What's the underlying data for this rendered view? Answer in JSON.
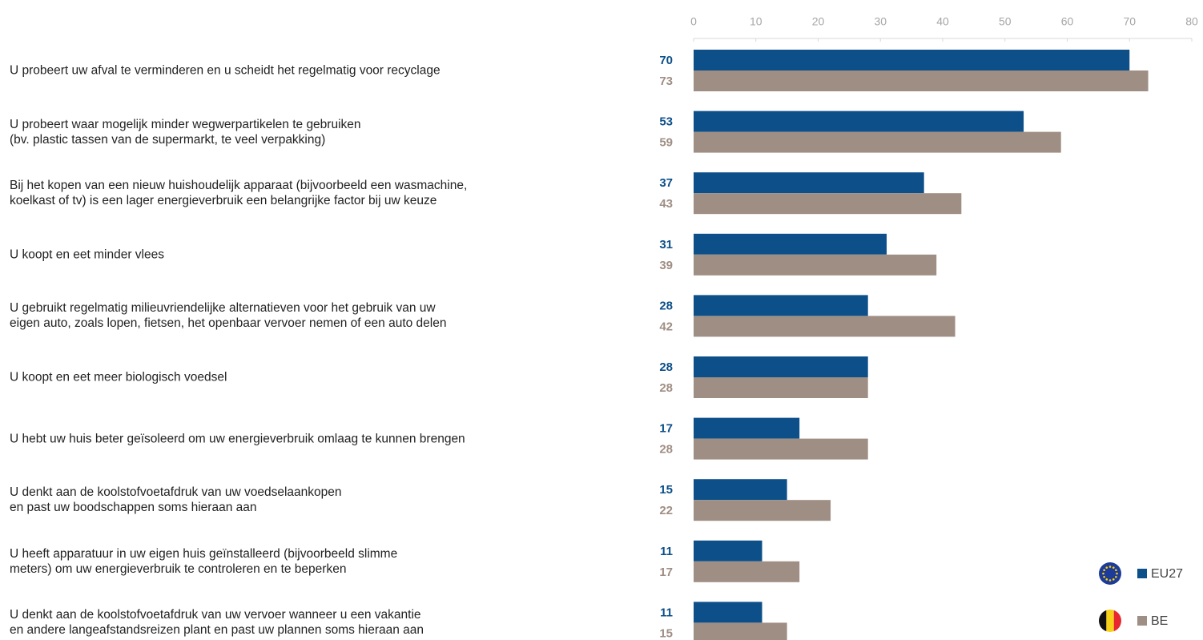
{
  "chart_data": {
    "type": "bar",
    "orientation": "horizontal",
    "categories": [
      "U probeert uw afval te verminderen en u scheidt het regelmatig voor recyclage",
      "U probeert waar mogelijk minder wegwerpartikelen te gebruiken\n(bv. plastic tassen van de supermarkt, te veel verpakking)",
      "Bij het kopen van een nieuw huishoudelijk apparaat (bijvoorbeeld een wasmachine,\nkoelkast of tv) is een lager energieverbruik een belangrijke factor bij uw keuze",
      "U koopt en eet minder vlees",
      "U gebruikt regelmatig milieuvriendelijke alternatieven voor het gebruik van uw\neigen auto, zoals lopen, fietsen, het openbaar vervoer nemen of een auto delen",
      "U koopt en eet meer biologisch voedsel",
      "U hebt uw huis beter geïsoleerd om uw energieverbruik omlaag te kunnen brengen",
      "U denkt aan de koolstofvoetafdruk van uw voedselaankopen\nen past uw boodschappen soms hieraan aan",
      "U heeft apparatuur in uw eigen huis geïnstalleerd (bijvoorbeeld slimme\nmeters) om uw energieverbruik te controleren en te beperken",
      "U denkt aan de koolstofvoetafdruk van uw vervoer wanneer u een vakantie\nen andere langeafstandsreizen plant en past uw plannen soms hieraan aan"
    ],
    "series": [
      {
        "name": "EU27",
        "color": "#0c4f89",
        "values": [
          70,
          53,
          37,
          31,
          28,
          28,
          17,
          15,
          11,
          11
        ]
      },
      {
        "name": "BE",
        "color": "#9f8e84",
        "values": [
          73,
          59,
          43,
          39,
          42,
          28,
          28,
          22,
          17,
          15
        ]
      }
    ],
    "xlim": [
      0,
      80
    ],
    "xticks": [
      0,
      10,
      20,
      30,
      40,
      50,
      60,
      70,
      80
    ],
    "legend": "bottom-right"
  }
}
